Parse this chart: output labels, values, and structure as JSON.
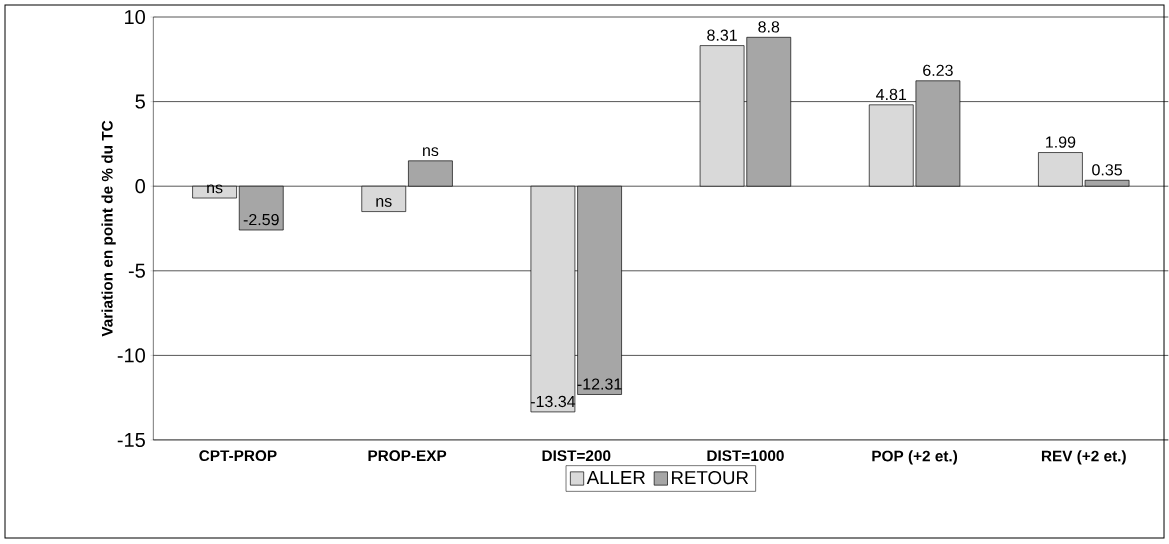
{
  "chart_data": {
    "type": "bar",
    "ylabel": "Variation en point de % du TC",
    "categories": [
      "CPT-PROP",
      "PROP-EXP",
      "DIST=200",
      "DIST=1000",
      "POP (+2 et.)",
      "REV (+2 et.)"
    ],
    "series": [
      {
        "name": "ALLER",
        "color": "#d9d9d9",
        "values": [
          -0.7,
          -1.5,
          -13.34,
          8.31,
          4.81,
          1.99
        ],
        "value_labels": [
          "ns",
          "ns",
          "-13.34",
          "8.31",
          "4.81",
          "1.99"
        ]
      },
      {
        "name": "RETOUR",
        "color": "#a6a6a6",
        "values": [
          -2.59,
          1.5,
          -12.31,
          8.8,
          6.23,
          0.35
        ],
        "value_labels": [
          "-2.59",
          "ns",
          "-12.31",
          "8.8",
          "6.23",
          "0.35"
        ]
      }
    ],
    "ylim": [
      -15,
      10
    ],
    "yticks": [
      -15,
      -10,
      -5,
      0,
      5,
      10
    ],
    "grid": "y",
    "legend": "bottom"
  }
}
